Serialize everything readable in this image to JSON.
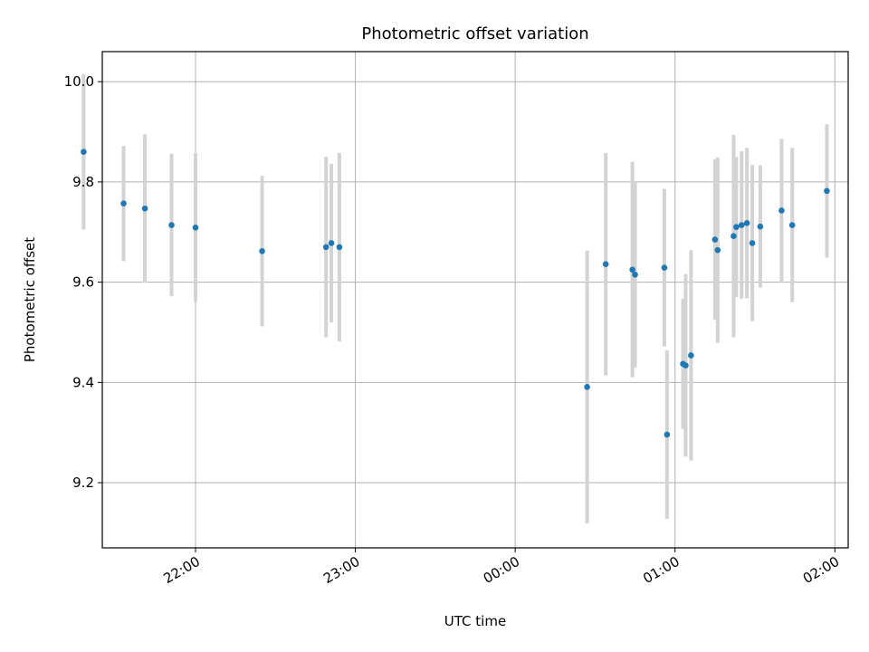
{
  "chart_data": {
    "type": "scatter",
    "title": "Photometric offset variation",
    "xlabel": "UTC time",
    "ylabel": "Photometric offset",
    "grid": true,
    "x_tick_labels": [
      "22:00",
      "23:00",
      "00:00",
      "01:00",
      "02:00"
    ],
    "y_tick_labels": [
      "9.2",
      "9.4",
      "9.6",
      "9.8",
      "10.0"
    ],
    "x_ticks": [
      "22:00",
      "23:00",
      "00:00",
      "01:00",
      "02:00"
    ],
    "y_ticks": [
      9.2,
      9.4,
      9.6,
      9.8,
      10.0
    ],
    "xlim": [
      "21:25",
      "02:05"
    ],
    "ylim": [
      9.07,
      10.06
    ],
    "marker_color": "#1f77b4",
    "errorbar_color": "#d3d3d3",
    "points": [
      {
        "time": "21:18",
        "y": 9.86,
        "err": 0.155
      },
      {
        "time": "21:33",
        "y": 9.757,
        "err": 0.115
      },
      {
        "time": "21:41",
        "y": 9.747,
        "err": 0.148
      },
      {
        "time": "21:51",
        "y": 9.714,
        "err": 0.142
      },
      {
        "time": "22:00",
        "y": 9.709,
        "err": 0.148
      },
      {
        "time": "22:25",
        "y": 9.662,
        "err": 0.15
      },
      {
        "time": "22:49",
        "y": 9.67,
        "err": 0.18
      },
      {
        "time": "22:51",
        "y": 9.678,
        "err": 0.158
      },
      {
        "time": "22:54",
        "y": 9.67,
        "err": 0.188
      },
      {
        "time": "00:27",
        "y": 9.391,
        "err": 0.272
      },
      {
        "time": "00:34",
        "y": 9.636,
        "err": 0.222
      },
      {
        "time": "00:44",
        "y": 9.625,
        "err": 0.215
      },
      {
        "time": "00:45",
        "y": 9.615,
        "err": 0.185
      },
      {
        "time": "00:56",
        "y": 9.629,
        "err": 0.157
      },
      {
        "time": "00:57",
        "y": 9.296,
        "err": 0.168
      },
      {
        "time": "01:03",
        "y": 9.437,
        "err": 0.13
      },
      {
        "time": "01:04",
        "y": 9.434,
        "err": 0.182
      },
      {
        "time": "01:06",
        "y": 9.454,
        "err": 0.21
      },
      {
        "time": "01:15",
        "y": 9.685,
        "err": 0.16
      },
      {
        "time": "01:16",
        "y": 9.664,
        "err": 0.185
      },
      {
        "time": "01:22",
        "y": 9.692,
        "err": 0.202
      },
      {
        "time": "01:23",
        "y": 9.71,
        "err": 0.14
      },
      {
        "time": "01:25",
        "y": 9.714,
        "err": 0.147
      },
      {
        "time": "01:27",
        "y": 9.718,
        "err": 0.15
      },
      {
        "time": "01:29",
        "y": 9.678,
        "err": 0.156
      },
      {
        "time": "01:32",
        "y": 9.711,
        "err": 0.122
      },
      {
        "time": "01:40",
        "y": 9.743,
        "err": 0.143
      },
      {
        "time": "01:44",
        "y": 9.714,
        "err": 0.154
      },
      {
        "time": "01:57",
        "y": 9.782,
        "err": 0.133
      }
    ]
  }
}
